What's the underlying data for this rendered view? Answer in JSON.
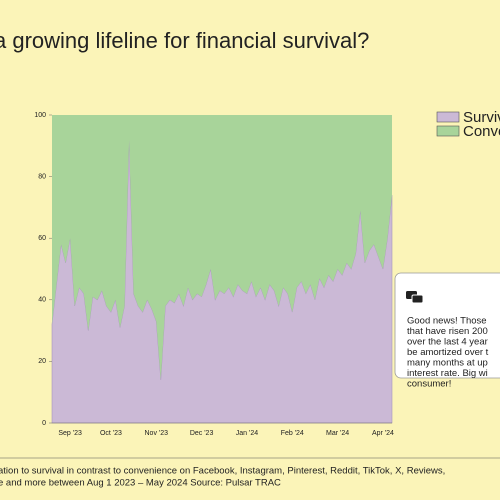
{
  "chart_data": {
    "type": "stacked_area",
    "title": "a growing lifeline for financial survival?",
    "categories": [
      null,
      null,
      null,
      null,
      "Sep '23",
      null,
      null,
      null,
      null,
      null,
      null,
      null,
      null,
      "Oct '23",
      null,
      null,
      null,
      null,
      null,
      null,
      null,
      null,
      null,
      "Nov '23",
      null,
      null,
      null,
      null,
      null,
      null,
      null,
      null,
      null,
      "Dec '23",
      null,
      null,
      null,
      null,
      null,
      null,
      null,
      null,
      null,
      "Jan '24",
      null,
      null,
      null,
      null,
      null,
      null,
      null,
      null,
      null,
      "Feb '24",
      null,
      null,
      null,
      null,
      null,
      null,
      null,
      null,
      null,
      "Mar '24",
      null,
      null,
      null,
      null,
      null,
      null,
      null,
      null,
      null,
      "Apr '24",
      null,
      null
    ],
    "series": [
      {
        "name": "Surviv",
        "color": "#cbb9d6",
        "values": [
          32,
          45,
          58,
          52,
          60,
          38,
          44,
          42,
          30,
          41,
          40,
          43,
          38,
          36,
          40,
          31,
          38,
          92,
          42,
          38,
          36,
          40,
          37,
          33,
          14,
          38,
          40,
          39,
          42,
          38,
          44,
          40,
          42,
          41,
          45,
          50,
          40,
          43,
          42,
          44,
          41,
          45,
          43,
          42,
          46,
          41,
          44,
          40,
          45,
          43,
          38,
          44,
          42,
          36,
          44,
          46,
          42,
          45,
          40,
          47,
          44,
          48,
          46,
          50,
          48,
          52,
          50,
          55,
          69,
          52,
          56,
          58,
          54,
          50,
          60,
          74
        ]
      },
      {
        "name": "Conve",
        "color": "#a8d49a",
        "values": [
          68,
          55,
          42,
          48,
          40,
          62,
          56,
          58,
          70,
          59,
          60,
          57,
          62,
          64,
          60,
          69,
          62,
          8,
          58,
          62,
          64,
          60,
          63,
          67,
          86,
          62,
          60,
          61,
          58,
          62,
          56,
          60,
          58,
          59,
          55,
          50,
          60,
          57,
          58,
          56,
          59,
          55,
          57,
          58,
          54,
          59,
          56,
          60,
          55,
          57,
          62,
          56,
          58,
          64,
          56,
          54,
          58,
          55,
          60,
          53,
          56,
          52,
          54,
          50,
          52,
          48,
          50,
          45,
          31,
          48,
          44,
          42,
          46,
          50,
          40,
          26
        ]
      }
    ],
    "ylim": [
      0,
      100
    ],
    "yticks": [
      0,
      20,
      40,
      60,
      80,
      100
    ],
    "annotation": [
      "Good news! Those",
      "that have risen 200",
      "over the last 4 year",
      "be amortized over t",
      "many months at up",
      "interest rate. Big wi",
      "consumer!"
    ],
    "caption": [
      "ation to survival in contrast to convenience on Facebook, Instagram, Pinterest, Reddit, TikTok, X, Reviews,",
      "e and more between Aug 1 2023  – May 2024  Source: Pulsar TRAC"
    ]
  }
}
